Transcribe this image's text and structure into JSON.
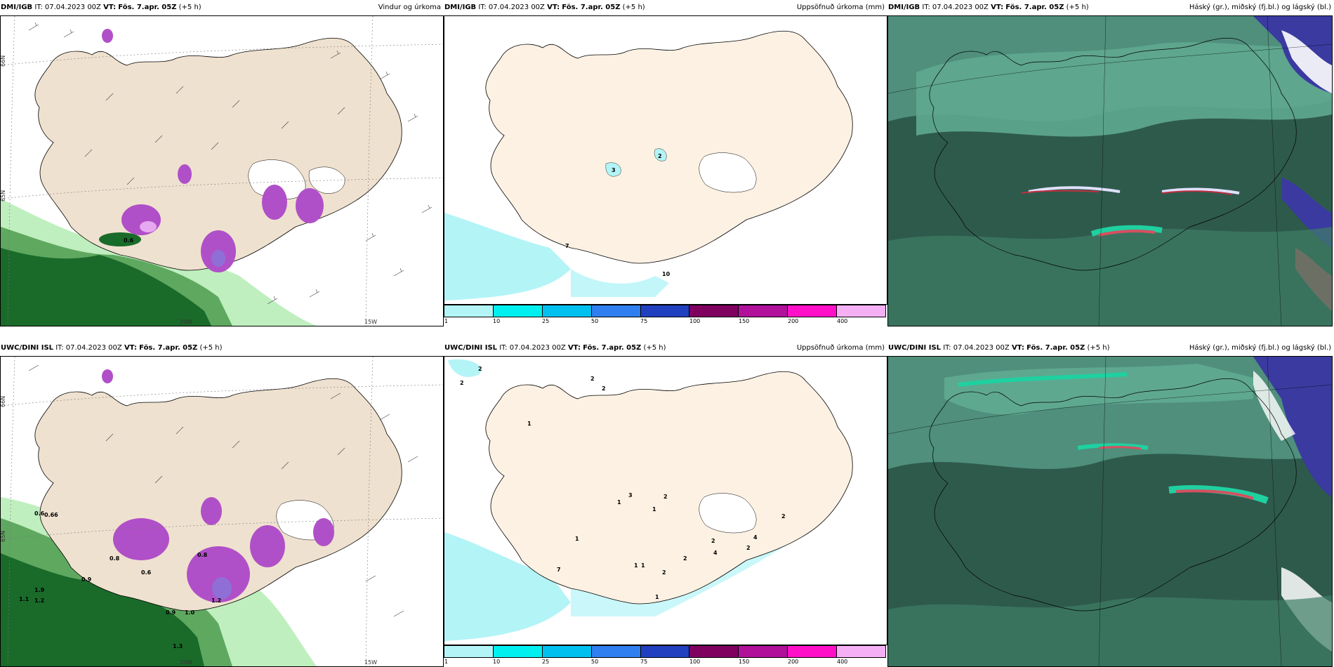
{
  "panels": [
    {
      "model": "DMI/IGB",
      "it": "IT: 07.04.2023 00Z",
      "vt_label": "VT:",
      "vt": "Fös. 7.apr. 05Z",
      "lead": "(+5 h)",
      "title": "Vindur og úrkoma"
    },
    {
      "model": "DMI/IGB",
      "it": "IT: 07.04.2023 00Z",
      "vt_label": "VT:",
      "vt": "Fös. 7.apr. 05Z",
      "lead": "(+5 h)",
      "title": "Uppsöfnuð úrkoma (mm)"
    },
    {
      "model": "DMI/IGB",
      "it": "IT: 07.04.2023 00Z",
      "vt_label": "VT:",
      "vt": "Fös. 7.apr. 05Z",
      "lead": "(+5 h)",
      "title": "Háský (gr.), miðský (fj.bl.) og lágský (bl.)"
    },
    {
      "model": "UWC/DINI ISL",
      "it": "IT: 07.04.2023 00Z",
      "vt_label": "VT:",
      "vt": "Fös. 7.apr. 05Z",
      "lead": "(+5 h)",
      "title": ""
    },
    {
      "model": "UWC/DINI ISL",
      "it": "IT: 07.04.2023 00Z",
      "vt_label": "VT:",
      "vt": "Fös. 7.apr. 05Z",
      "lead": "(+5 h)",
      "title": "Uppsöfnuð úrkoma (mm)"
    },
    {
      "model": "UWC/DINI ISL",
      "it": "IT: 07.04.2023 00Z",
      "vt_label": "VT:",
      "vt": "Fös. 7.apr. 05Z",
      "lead": "(+5 h)",
      "title": "Háský (gr.), miðský (fj.bl.) og lágský (bl.)"
    }
  ],
  "axis": {
    "lat66": "66N",
    "lat65": "65N",
    "lon15": "15W",
    "lon20": "20W"
  },
  "legend": {
    "ticks": [
      "1",
      "10",
      "25",
      "50",
      "75",
      "100",
      "150",
      "200",
      "400"
    ],
    "colors": [
      "#b3f4f7",
      "#00f0f0",
      "#00c0f0",
      "#2f7ff0",
      "#2040c0",
      "#800060",
      "#b0109a",
      "#ff10c8",
      "#f5b0f5"
    ]
  },
  "precip_top": [
    "3",
    "2",
    "7",
    "10"
  ],
  "precip_bottom": [
    "2",
    "2",
    "2",
    "2",
    "1",
    "3",
    "1",
    "2",
    "1",
    "1",
    "7",
    "1",
    "1",
    "2",
    "2",
    "4",
    "2",
    "1",
    "2",
    "2",
    "4"
  ],
  "wind_top": [
    "0.6"
  ],
  "wind_bottom": [
    "0.6",
    "0.66",
    "0.8",
    "0.9",
    "1.0",
    "1.3",
    "1.1",
    "1.2",
    "1.9",
    "0.6",
    "0.8",
    "0.9",
    "1.2"
  ],
  "colors": {
    "land": "#efe1cf",
    "land2": "#fdf1e3",
    "green_dark": "#1a6b2a",
    "green_mid": "#5fa860",
    "green_light": "#bfefbe",
    "purple": "#b050c8",
    "cloud_dark": "#2e5a4c",
    "cloud_teal": "#1fa08a",
    "cloud_blue": "#3a3aa0"
  }
}
